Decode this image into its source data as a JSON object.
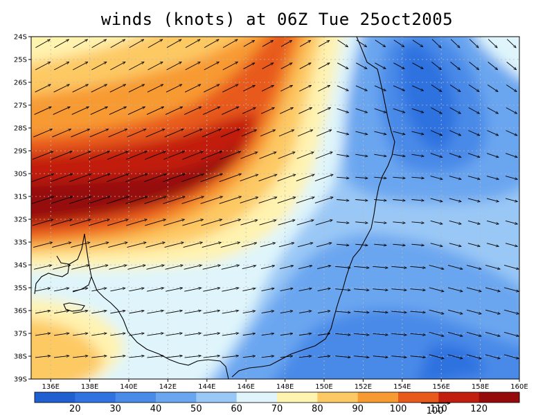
{
  "title": "winds (knots) at 06Z Tue 25oct2005",
  "map": {
    "lat_labels": [
      "24S",
      "25S",
      "26S",
      "27S",
      "28S",
      "29S",
      "30S",
      "31S",
      "32S",
      "33S",
      "34S",
      "35S",
      "36S",
      "37S",
      "38S",
      "39S"
    ],
    "lon_labels": [
      "136E",
      "138E",
      "140E",
      "142E",
      "144E",
      "146E",
      "148E",
      "150E",
      "152E",
      "154E",
      "156E",
      "158E",
      "160E"
    ],
    "lat_range": [
      -39,
      -24
    ],
    "lon_range": [
      135,
      160
    ],
    "grid": "dashed",
    "coastline_color": "#000000"
  },
  "colorbar": {
    "labels": [
      "20",
      "30",
      "40",
      "50",
      "60",
      "70",
      "80",
      "90",
      "100",
      "110",
      "120"
    ],
    "colors": [
      "#1f5fd0",
      "#2f72e0",
      "#4a8ae8",
      "#6aa6f0",
      "#9ac8f6",
      "#dff5fb",
      "#fff3b0",
      "#fdc964",
      "#f89a32",
      "#e85a1c",
      "#c21e10",
      "#950a0a"
    ],
    "reference_vector": "100"
  }
}
